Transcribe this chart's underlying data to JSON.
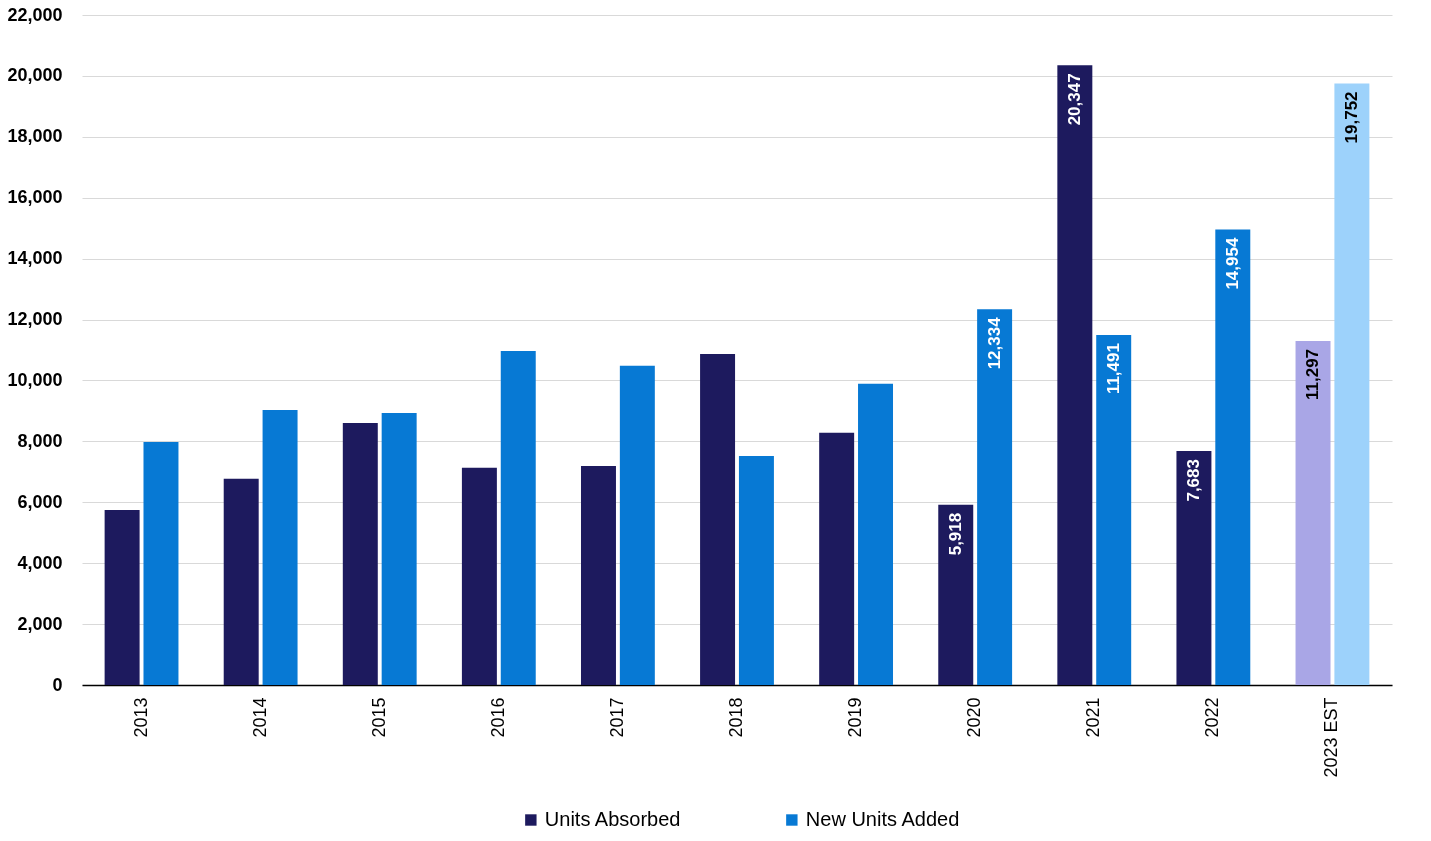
{
  "chart_data": {
    "type": "bar",
    "categories": [
      "2013",
      "2014",
      "2015",
      "2016",
      "2017",
      "2018",
      "2019",
      "2020",
      "2021",
      "2022",
      "2023 EST"
    ],
    "series": [
      {
        "name": "Units Absorbed",
        "color": "#1d1a5e",
        "colors": [
          "#1d1a5e",
          "#1d1a5e",
          "#1d1a5e",
          "#1d1a5e",
          "#1d1a5e",
          "#1d1a5e",
          "#1d1a5e",
          "#1d1a5e",
          "#1d1a5e",
          "#1d1a5e",
          "#a9a6e6"
        ],
        "values": [
          5750,
          6770,
          8600,
          7130,
          7190,
          10870,
          8280,
          5918,
          20347,
          7683,
          11297
        ],
        "value_labels": [
          null,
          null,
          null,
          null,
          null,
          null,
          null,
          "5,918",
          "20,347",
          "7,683",
          "11,297"
        ]
      },
      {
        "name": "New Units Added",
        "color": "#0779d4",
        "colors": [
          "#0779d4",
          "#0779d4",
          "#0779d4",
          "#0779d4",
          "#0779d4",
          "#0779d4",
          "#0779d4",
          "#0779d4",
          "#0779d4",
          "#0779d4",
          "#9dd2fb"
        ],
        "values": [
          7980,
          9030,
          8930,
          10970,
          10480,
          7520,
          9890,
          12334,
          11491,
          14954,
          19752
        ],
        "value_labels": [
          null,
          null,
          null,
          null,
          null,
          null,
          null,
          "12,334",
          "11,491",
          "14,954",
          "19,752"
        ]
      }
    ],
    "ylim": [
      0,
      22000
    ],
    "yticks": [
      0,
      {
        "value": 2000,
        "label": "2,000"
      },
      {
        "value": 4000,
        "label": "4,000"
      },
      {
        "value": 6000,
        "label": "6,000"
      },
      {
        "value": 8000,
        "label": "8,000"
      },
      {
        "value": 10000,
        "label": "10,000"
      },
      {
        "value": 12000,
        "label": "12,000"
      },
      {
        "value": 14000,
        "label": "14,000"
      },
      {
        "value": 16000,
        "label": "16,000"
      },
      {
        "value": 18000,
        "label": "18,000"
      },
      {
        "value": 20000,
        "label": "20,000"
      },
      {
        "value": 22000,
        "label": "22,000"
      }
    ],
    "grid": "y",
    "legend": "bottom"
  }
}
